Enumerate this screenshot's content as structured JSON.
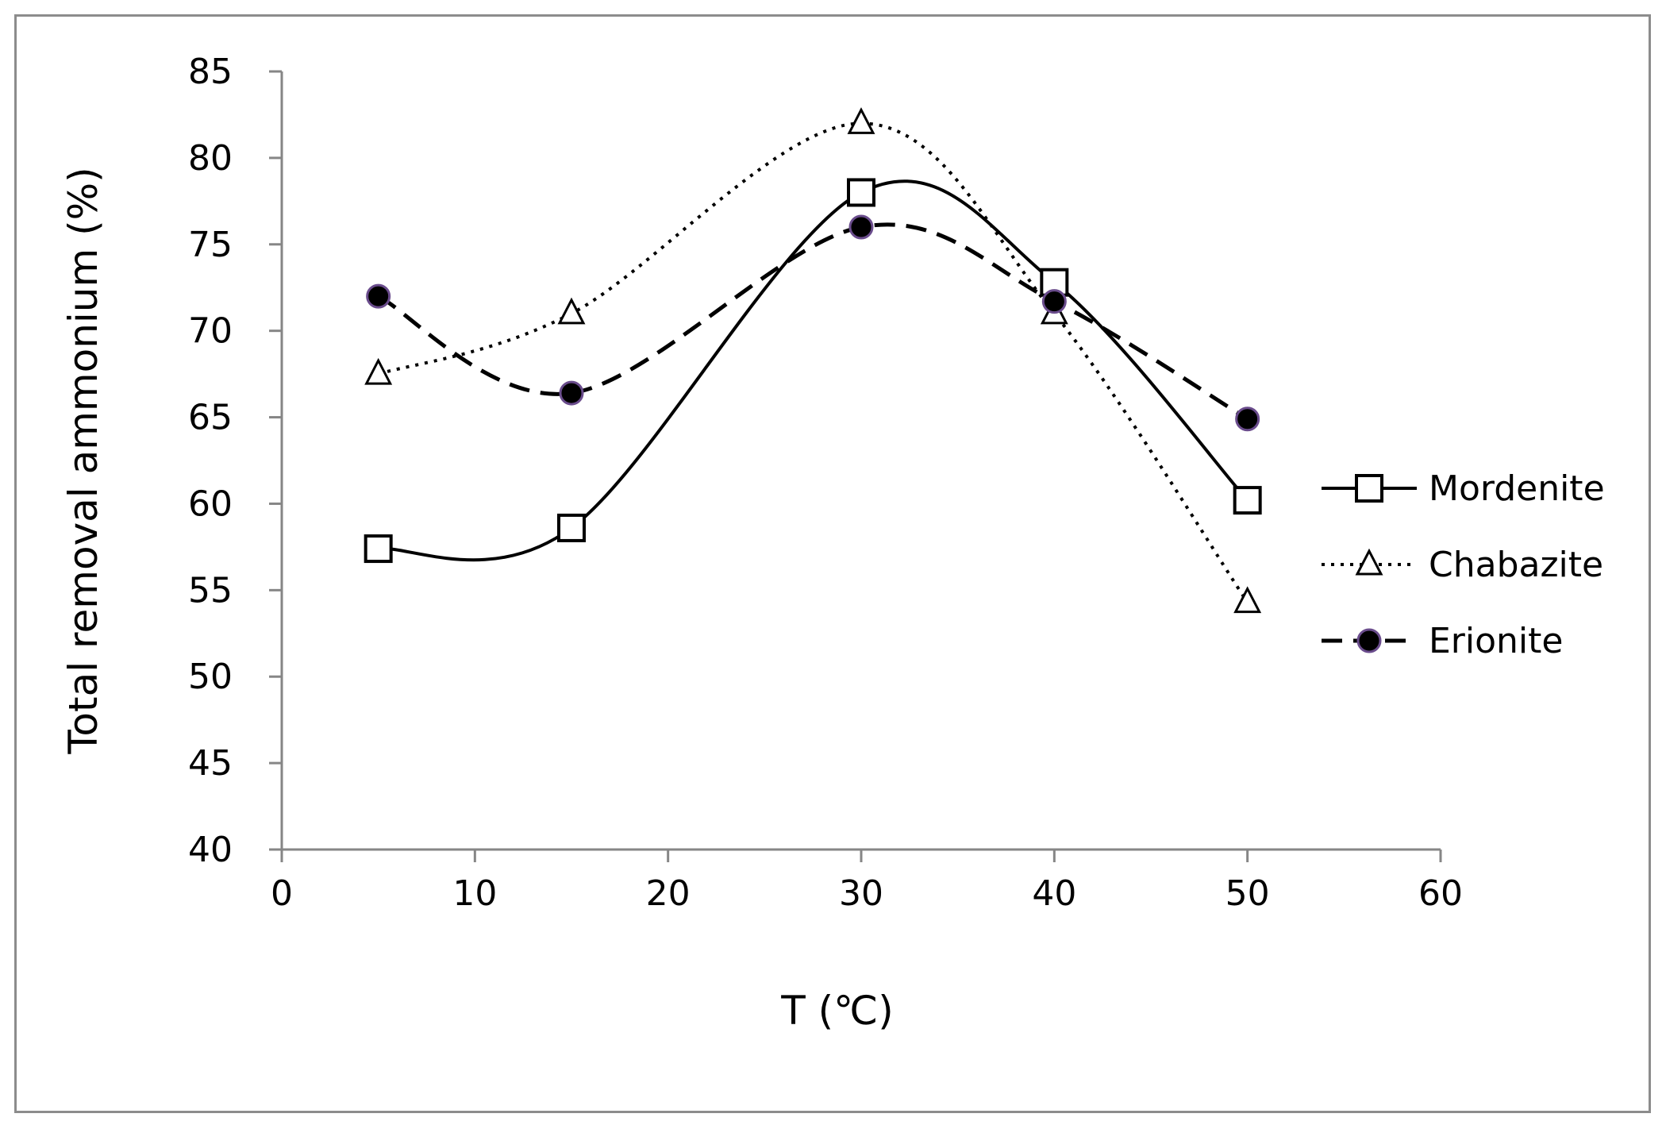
{
  "chart_data": {
    "type": "line",
    "title": "",
    "xlabel": "T (℃)",
    "ylabel": "Total removal ammonium (%)",
    "xlim": [
      0,
      60
    ],
    "ylim": [
      40,
      85
    ],
    "xticks": [
      0,
      10,
      20,
      30,
      40,
      50,
      60
    ],
    "yticks": [
      40,
      45,
      50,
      55,
      60,
      65,
      70,
      75,
      80,
      85
    ],
    "grid": false,
    "legend_position": "right",
    "x": [
      5,
      15,
      30,
      40,
      50
    ],
    "series": [
      {
        "name": "Mordenite",
        "values": [
          57.4,
          58.6,
          78.0,
          72.8,
          60.2
        ],
        "marker": "open-square",
        "line": "solid",
        "color": "#000000"
      },
      {
        "name": "Chabazite",
        "values": [
          67.5,
          71.0,
          82.0,
          71.0,
          54.3
        ],
        "marker": "open-triangle",
        "line": "dotted",
        "color": "#000000"
      },
      {
        "name": "Erionite",
        "values": [
          72.0,
          66.4,
          76.0,
          71.7,
          64.9
        ],
        "marker": "filled-circle",
        "line": "dashed",
        "color": "#000000",
        "marker_edge_color": "#6a4c8c"
      }
    ]
  }
}
